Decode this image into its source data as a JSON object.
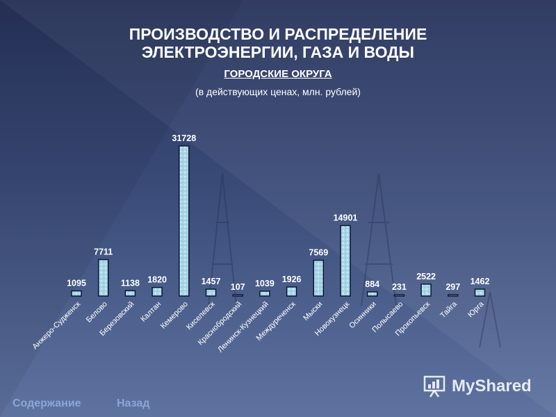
{
  "header": {
    "title_line1": "ПРОИЗВОДСТВО И РАСПРЕДЕЛЕНИЕ",
    "title_line2": "ЭЛЕКТРОЭНЕРГИИ, ГАЗА И ВОДЫ",
    "subtitle": "ГОРОДСКИЕ ОКРУГА",
    "units": "(в действующих ценах, млн. рублей)"
  },
  "chart_data": {
    "type": "bar",
    "title": "",
    "xlabel": "",
    "ylabel": "",
    "ylim": [
      0,
      33000
    ],
    "grid": false,
    "legend": "none",
    "categories": [
      "Анжеро-Судженск",
      "Белово",
      "Березовский",
      "Калтан",
      "Кемерово",
      "Киселевск",
      "Краснобродский",
      "Ленинск-Кузнецкий",
      "Междуреченск",
      "Мыски",
      "Новокузнецк",
      "Осинники",
      "Полысаево",
      "Прокопьевск",
      "Тайга",
      "Юрга"
    ],
    "values": [
      1095,
      7711,
      1138,
      1820,
      31728,
      1457,
      107,
      1039,
      1926,
      7569,
      14901,
      884,
      231,
      2522,
      297,
      1462
    ],
    "bar_color": "#a9d6e8"
  },
  "branding": {
    "logo_icon": "presentation-board-icon",
    "logo_text": "MyShared"
  },
  "nav": {
    "contents": "Содержание",
    "back": "Назад"
  }
}
